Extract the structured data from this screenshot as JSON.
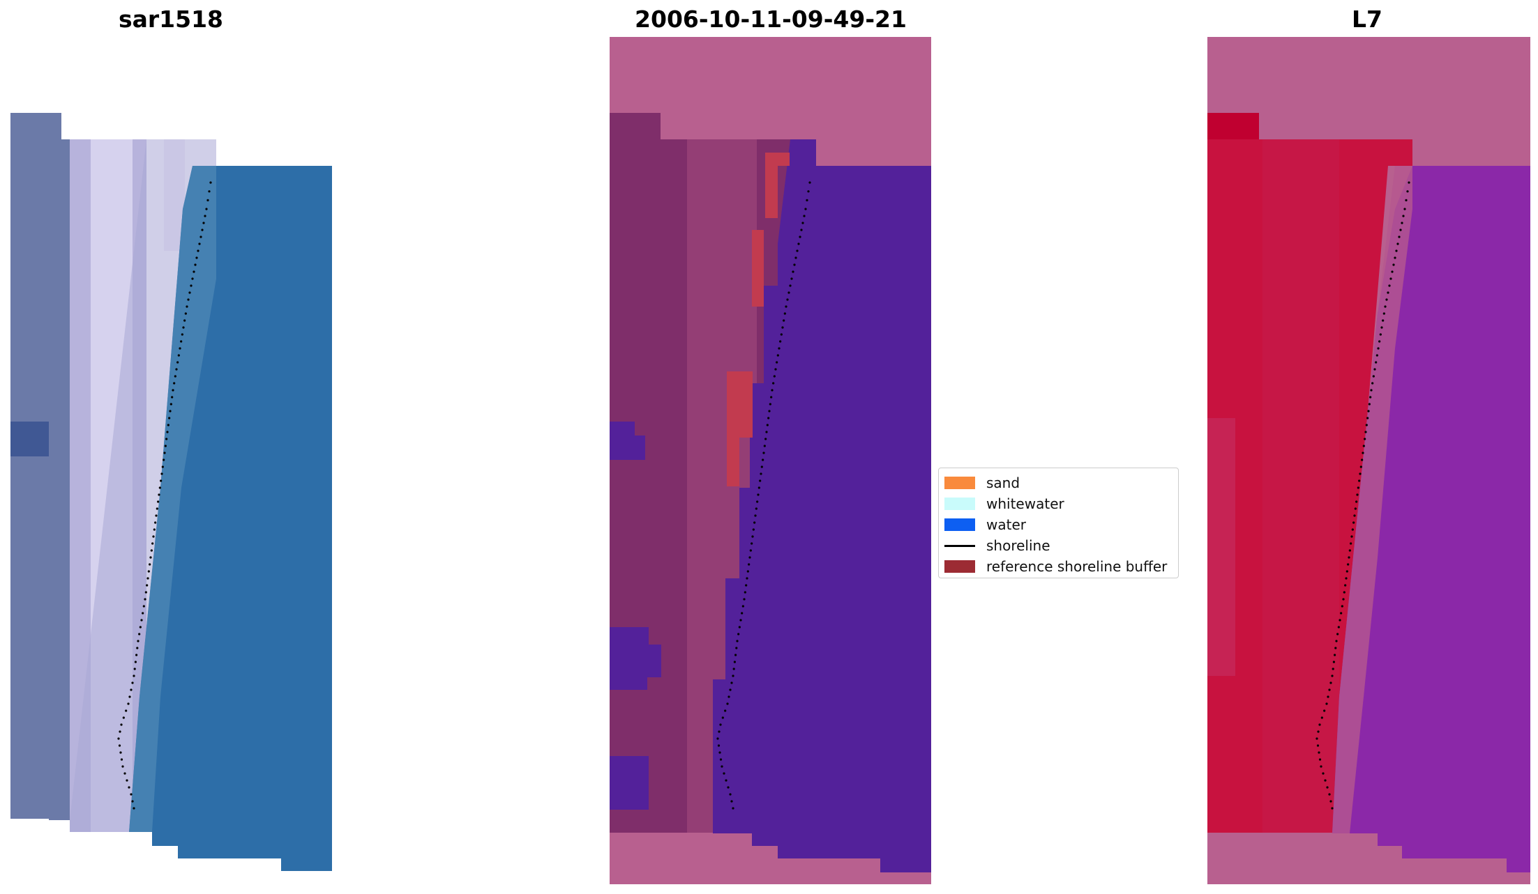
{
  "panels": {
    "left_title": "sar1518",
    "middle_title": "2006-10-11-09-49-21",
    "right_title": "L7"
  },
  "legend": {
    "items": [
      {
        "label": "sand",
        "color": "#f98a3c",
        "kind": "patch"
      },
      {
        "label": "whitewater",
        "color": "#c9fbfb",
        "kind": "patch"
      },
      {
        "label": "water",
        "color": "#0d5ff2",
        "kind": "patch"
      },
      {
        "label": "shoreline",
        "color": "#000000",
        "kind": "line"
      },
      {
        "label": "reference shoreline buffer",
        "color": "#9c2b33",
        "kind": "patch"
      }
    ]
  },
  "colors": {
    "rgb_sand": "#c9c4e6",
    "rgb_water": "#2d6ea8",
    "rgb_land": "#6b7aa8",
    "class_background": "#b8608f",
    "class_land": "#7f2e6a",
    "class_water": "#53219a",
    "class_buffer": "#c23b4f",
    "index_background": "#b8608f",
    "index_land": "#c8123f",
    "index_water": "#8b28a8"
  }
}
